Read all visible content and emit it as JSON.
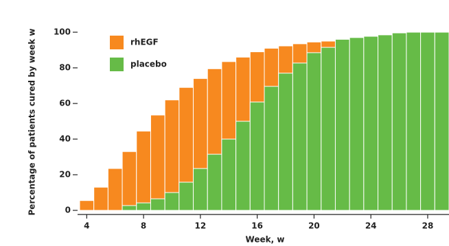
{
  "chart_data": {
    "type": "bar",
    "x": [
      4,
      5,
      6,
      7,
      8,
      9,
      10,
      11,
      12,
      13,
      14,
      15,
      16,
      17,
      18,
      19,
      20,
      21,
      22,
      23,
      24,
      25,
      26,
      27,
      28,
      29
    ],
    "series": [
      {
        "name": "rhEGF",
        "color": "#f7891f",
        "values": [
          5.5,
          13,
          23.5,
          33,
          44.5,
          53.5,
          62,
          69,
          74,
          79.5,
          83.5,
          86,
          89,
          91,
          92.3,
          93.5,
          94.5,
          95,
          null,
          null,
          null,
          null,
          null,
          null,
          null,
          null
        ]
      },
      {
        "name": "placebo",
        "color": "#66bb47",
        "values": [
          null,
          null,
          null,
          2.7,
          4.2,
          6.5,
          10,
          15.8,
          23.5,
          31.5,
          40,
          50,
          60.8,
          69.6,
          77,
          82.7,
          88.5,
          91.5,
          96,
          97,
          97.7,
          98.5,
          99.6,
          100,
          100,
          100
        ]
      }
    ],
    "xlim": [
      3.5,
      29.5
    ],
    "xticks": [
      4,
      8,
      12,
      16,
      20,
      24,
      28
    ],
    "ylim": [
      0,
      100
    ],
    "yticks": [
      0,
      20,
      40,
      60,
      80,
      100
    ],
    "x_label": "Week, w",
    "y_label": "Percentage of patients cured by week w"
  }
}
